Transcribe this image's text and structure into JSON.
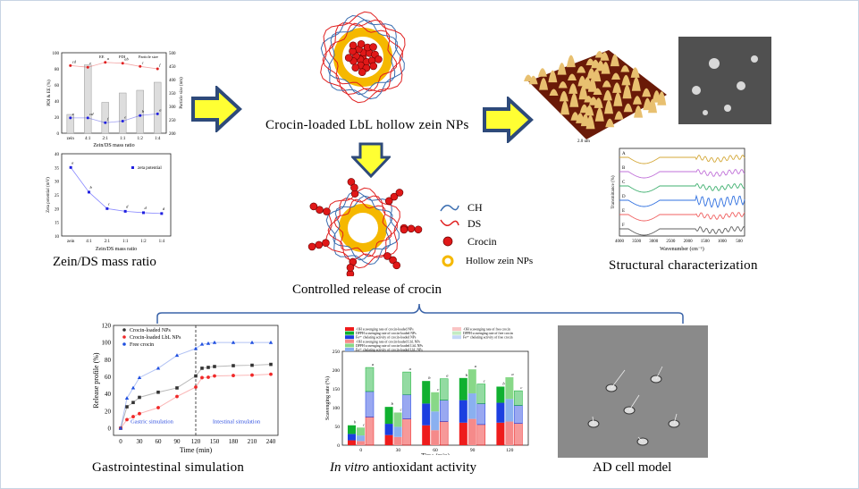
{
  "captions": {
    "zein_ds": "Zein/DS mass ratio",
    "lbl_nps": "Crocin-loaded LbL hollow zein NPs",
    "controlled": "Controlled release of crocin",
    "structural": "Structural characterization",
    "gi": "Gastrointestinal simulation",
    "antiox_italic": "In vitro",
    "antiox_rest": " antioxidant activity",
    "ad": "AD cell model"
  },
  "legend": {
    "ch": "CH",
    "ds": "DS",
    "crocin": "Crocin",
    "hollow": "Hollow zein NPs"
  },
  "colors": {
    "arrow_fill": "#ffff33",
    "arrow_stroke": "#2e4a7a",
    "ch": "#3a6db0",
    "ds": "#e02020",
    "crocin": "#e01818",
    "zein": "#f5b800"
  },
  "chart_data": [
    {
      "id": "ee_pdi_size",
      "type": "bar+line",
      "categories": [
        "zein",
        "4:1",
        "2:1",
        "1:1",
        "1:2",
        "1:4"
      ],
      "xlabel": "Zein/DS mass ratio",
      "ylabel": "PDI & EE (%)",
      "ylabel2": "Particle size (nm)",
      "ylim": [
        0,
        100
      ],
      "ylim2": [
        200,
        500
      ],
      "series": [
        {
          "name": "EE",
          "type": "line",
          "color": "#e02020",
          "values": [
            84,
            82,
            88,
            87,
            83,
            80
          ],
          "letters": [
            "cd",
            "e",
            "a",
            "ab",
            "c",
            "f"
          ]
        },
        {
          "name": "PDI",
          "type": "line",
          "color": "#2020e0",
          "values": [
            19,
            19,
            13,
            15,
            22,
            24
          ],
          "letters": [
            "e",
            "cd",
            "f",
            "e",
            "b",
            "a"
          ]
        },
        {
          "name": "Particle size",
          "type": "bar",
          "axis": "right",
          "values": [
            270,
            455,
            315,
            350,
            360,
            390
          ],
          "letters": [
            "f",
            "a",
            "e",
            "d",
            "c",
            "b"
          ]
        }
      ],
      "yticks": [
        "0",
        "20",
        "40",
        "60",
        "80",
        "100"
      ],
      "yticks2": [
        "200",
        "250",
        "300",
        "350",
        "400",
        "450",
        "500"
      ]
    },
    {
      "id": "zeta",
      "type": "line",
      "categories": [
        "zein",
        "4:1",
        "2:1",
        "1:1",
        "1:2",
        "1:4"
      ],
      "xlabel": "Zein/DS mass ratio",
      "ylabel": "Zeta potential (mV)",
      "ylim": [
        10,
        40
      ],
      "series": [
        {
          "name": "zeta potential",
          "color": "#2020e0",
          "values": [
            35,
            26,
            20,
            19,
            18.5,
            18.2
          ],
          "letters": [
            "a",
            "b",
            "c",
            "d",
            "d",
            "d"
          ]
        }
      ],
      "yticks": [
        "10",
        "15",
        "20",
        "25",
        "30",
        "35",
        "40"
      ]
    },
    {
      "id": "release",
      "type": "line",
      "x": [
        0,
        10,
        20,
        30,
        60,
        90,
        120,
        130,
        140,
        150,
        180,
        210,
        240
      ],
      "xlabel": "Time (min)",
      "ylabel": "Release profile (%)",
      "ylim": [
        0,
        120
      ],
      "xlim": [
        0,
        240
      ],
      "xticks": [
        "0",
        "30",
        "60",
        "90",
        "120",
        "150",
        "180",
        "210",
        "240"
      ],
      "yticks": [
        "0",
        "20",
        "40",
        "60",
        "80",
        "100",
        "120"
      ],
      "annotations": [
        "Gastric simulation",
        "Intestinal simulation"
      ],
      "series": [
        {
          "name": "Crocin-loaded NPs",
          "color": "#333333",
          "marker": "square",
          "values": [
            0,
            25,
            30,
            36,
            42,
            47,
            61,
            70,
            71,
            72,
            73,
            73.5,
            74.5
          ]
        },
        {
          "name": "Crocin-loaded LbL NPs",
          "color": "#f02828",
          "marker": "circle",
          "values": [
            0,
            10,
            13.5,
            17,
            24,
            37,
            48,
            59,
            59.5,
            61,
            61.5,
            62,
            63
          ]
        },
        {
          "name": "Free crocin",
          "color": "#2050e0",
          "marker": "triangle",
          "values": [
            0,
            35,
            47,
            59,
            70,
            85,
            93,
            98,
            99,
            100,
            100,
            100,
            100
          ]
        }
      ]
    },
    {
      "id": "antioxidant",
      "type": "stacked-bar",
      "categories": [
        "0",
        "30",
        "60",
        "90",
        "120"
      ],
      "xlabel": "Time (min)",
      "ylabel": "Scavenging rate (%)",
      "ylim": [
        0,
        250
      ],
      "yticks": [
        "0",
        "50",
        "100",
        "150",
        "200",
        "250"
      ],
      "groups": [
        "Crocin-loaded NPs",
        "Crocin-loaded LbL NPs",
        "Free crocin"
      ],
      "legend": [
        "·OH scavenging rate of crocin-loaded NPs",
        "DPPH scavenging rate of crocin-loaded NPs",
        "Fe²⁺ chelating activity of crocin-loaded NPs",
        "·OH scavenging rate of crocin-loaded LbL NPs",
        "DPPH scavenging rate of crocin-loaded LbL NPs",
        "Fe²⁺ chelating activity of crocin-loaded LbL NPs",
        "·OH scavenging rate of free crocin",
        "DPPH scavenging rate of free crocin",
        "Fe²⁺ chelating activity of free crocin"
      ],
      "series": [
        {
          "group": "Crocin-loaded NPs",
          "OH": [
            13,
            27,
            53,
            60,
            60
          ],
          "Fe": [
            17,
            30,
            58,
            60,
            53
          ],
          "DPPH": [
            23,
            45,
            60,
            59,
            43
          ],
          "letters": [
            "b",
            "b",
            "b",
            "b",
            "b"
          ]
        },
        {
          "group": "Crocin-loaded LbL NPs",
          "OH": [
            11,
            22,
            40,
            70,
            63
          ],
          "Fe": [
            15,
            27,
            50,
            68,
            60
          ],
          "DPPH": [
            21,
            38,
            51,
            64,
            58
          ],
          "letters": [
            "c",
            "c",
            "c",
            "a",
            "a"
          ]
        },
        {
          "group": "Free crocin",
          "OH": [
            75,
            70,
            63,
            55,
            58
          ],
          "Fe": [
            68,
            65,
            57,
            56,
            48
          ],
          "DPPH": [
            64,
            60,
            57,
            52,
            39
          ],
          "letters": [
            "a",
            "a",
            "a",
            "c",
            "c"
          ]
        }
      ]
    },
    {
      "id": "ftir",
      "type": "line",
      "xlabel": "Wavenumber (cm⁻¹)",
      "ylabel": "Transmittance (%)",
      "xticks": [
        "4000",
        "3500",
        "3000",
        "2500",
        "2000",
        "1500",
        "1000",
        "500"
      ],
      "series": [
        {
          "name": "A",
          "color": "#d4a838"
        },
        {
          "name": "B",
          "color": "#c070d8"
        },
        {
          "name": "C",
          "color": "#40b070"
        },
        {
          "name": "D",
          "color": "#3070e0"
        },
        {
          "name": "E",
          "color": "#f06060"
        },
        {
          "name": "F",
          "color": "#606060"
        }
      ]
    }
  ]
}
